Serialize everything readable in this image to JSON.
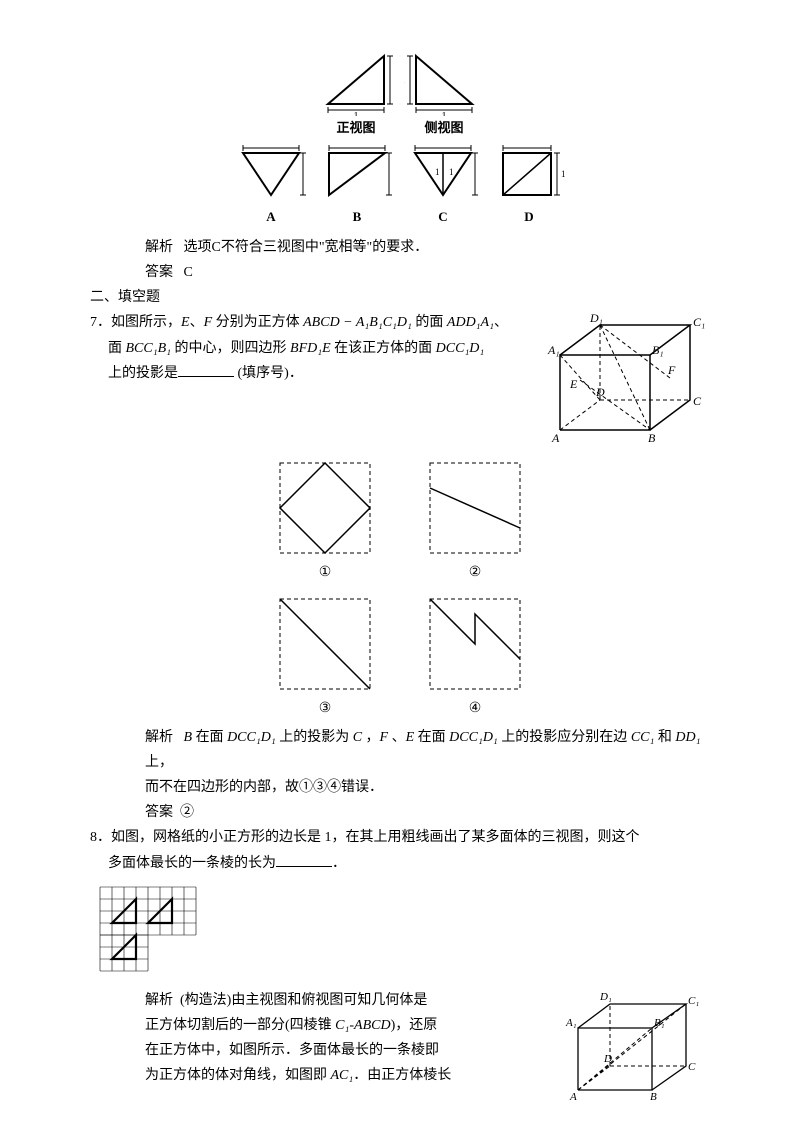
{
  "fig_top": {
    "labels": {
      "front": "正视图",
      "side": "侧视图"
    },
    "options": [
      "A",
      "B",
      "C",
      "D"
    ]
  },
  "q_prev": {
    "analysis_label": "解析",
    "analysis_text": "选项C不符合三视图中\"宽相等\"的要求．",
    "answer_label": "答案",
    "answer_text": "C"
  },
  "section2": "二、填空题",
  "q7": {
    "num": "7．",
    "line1_a": "如图所示，",
    "line1_b": "E",
    "line1_c": "、",
    "line1_d": "F",
    "line1_e": " 分别为正方体 ",
    "line1_f": "ABCD − A₁B₁C₁D₁",
    "line1_g": " 的面 ",
    "line1_h": "ADD₁A₁",
    "line1_i": "、",
    "line2_a": "面 ",
    "line2_b": "BCC₁B₁",
    "line2_c": " 的中心，则四边形 ",
    "line2_d": "BFD₁E",
    "line2_e": " 在该正方体的面 ",
    "line2_f": "DCC₁D₁",
    "line3_a": "上的投影是",
    "line3_b": " (填序号)．",
    "opts": [
      "①",
      "②",
      "③",
      "④"
    ],
    "analysis_label": "解析",
    "analysis_a": "B",
    "analysis_b": " 在面 ",
    "analysis_c": "DCC₁D₁",
    "analysis_d": " 上的投影为 ",
    "analysis_e": "C",
    "analysis_f": " ，",
    "analysis_g": "F",
    "analysis_h": " 、",
    "analysis_i": "E",
    "analysis_j": " 在面 ",
    "analysis_k": "DCC₁D₁",
    "analysis_l": " 上的投影应分别在边 ",
    "analysis_m": "CC₁",
    "analysis_n": " 和 ",
    "analysis_o": "DD₁",
    "analysis_p": " 上，",
    "analysis2": "而不在四边形的内部，故①③④错误．",
    "answer_label": "答案",
    "answer_text": "②",
    "cube_labels": {
      "A": "A",
      "B": "B",
      "C": "C",
      "D": "D",
      "A1": "A₁",
      "B1": "B₁",
      "C1": "C₁",
      "D1": "D₁",
      "E": "E",
      "F": "F"
    }
  },
  "q8": {
    "num": "8．",
    "line1": "如图，网格纸的小正方形的边长是 1，在其上用粗线画出了某多面体的三视图，则这个",
    "line2_a": "多面体最长的一条棱的长为",
    "line2_b": "．",
    "analysis_label": "解析",
    "analysis_l1": "(构造法)由主视图和俯视图可知几何体是",
    "analysis_l2_a": "正方体切割后的一部分(四棱锥 ",
    "analysis_l2_b": "C₁-ABCD",
    "analysis_l2_c": ")，还原",
    "analysis_l3": "在正方体中，如图所示．多面体最长的一条棱即",
    "analysis_l4_a": "为正方体的体对角线，如图即 ",
    "analysis_l4_b": "AC₁",
    "analysis_l4_c": "．由正方体棱长",
    "cube_labels": {
      "A": "A",
      "B": "B",
      "C": "C",
      "D": "D",
      "A1": "A₁",
      "B1": "B₁",
      "C1": "C₁",
      "D1": "D₁"
    }
  }
}
